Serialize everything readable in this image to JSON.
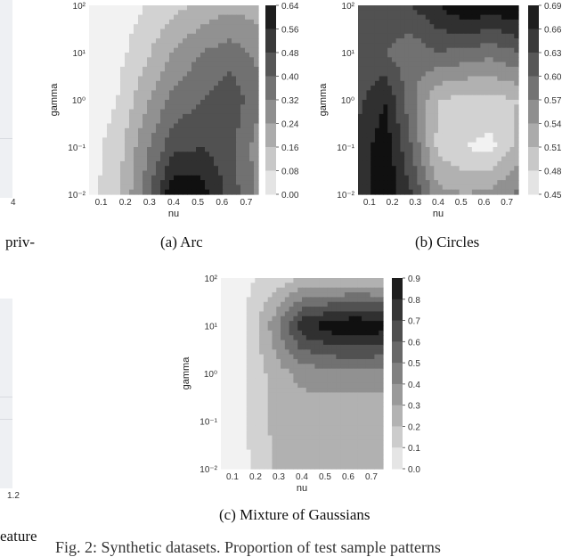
{
  "left_fragments": {
    "tick_top": "4",
    "tick_bottom": "1.2",
    "text_priv": "priv-",
    "text_feature": "eature"
  },
  "bottom_text": "Fig. 2: Synthetic datasets. Proportion of test sample patterns",
  "colors": {
    "dark": "#111111",
    "light": "#f2f2f2"
  },
  "chart_data": [
    {
      "type": "heatmap",
      "caption": "(a) Arc",
      "xlabel": "nu",
      "ylabel": "gamma",
      "x_ticks": [
        "0.1",
        "0.2",
        "0.3",
        "0.4",
        "0.5",
        "0.6",
        "0.7"
      ],
      "y_ticks": [
        "10²",
        "10¹",
        "10⁰",
        "10⁻¹",
        "10⁻²"
      ],
      "colorbar_ticks": [
        "0.64",
        "0.56",
        "0.48",
        "0.40",
        "0.32",
        "0.24",
        "0.16",
        "0.08",
        "0.00"
      ],
      "vmin": 0.0,
      "vmax": 0.64,
      "x": [
        0.1,
        0.2,
        0.3,
        0.4,
        0.5,
        0.6,
        0.7
      ],
      "gamma_log10": [
        -2,
        -1,
        0,
        1,
        2
      ],
      "z": [
        [
          0.05,
          0.14,
          0.35,
          0.64,
          0.6,
          0.45,
          0.3
        ],
        [
          0.04,
          0.12,
          0.3,
          0.45,
          0.48,
          0.42,
          0.28
        ],
        [
          0.03,
          0.08,
          0.22,
          0.35,
          0.4,
          0.46,
          0.34
        ],
        [
          0.02,
          0.05,
          0.14,
          0.25,
          0.32,
          0.36,
          0.3
        ],
        [
          0.01,
          0.03,
          0.08,
          0.13,
          0.18,
          0.22,
          0.2
        ]
      ]
    },
    {
      "type": "heatmap",
      "caption": "(b) Circles",
      "xlabel": "nu",
      "ylabel": "gamma",
      "x_ticks": [
        "0.1",
        "0.2",
        "0.3",
        "0.4",
        "0.5",
        "0.6",
        "0.7"
      ],
      "y_ticks": [
        "10²",
        "10¹",
        "10⁰",
        "10⁻¹",
        "10⁻²"
      ],
      "colorbar_ticks": [
        "0.69",
        "0.66",
        "0.63",
        "0.60",
        "0.57",
        "0.54",
        "0.51",
        "0.48",
        "0.45"
      ],
      "vmin": 0.45,
      "vmax": 0.69,
      "x": [
        0.1,
        0.2,
        0.3,
        0.4,
        0.5,
        0.6,
        0.7
      ],
      "gamma_log10": [
        -2,
        -1,
        0,
        1,
        2
      ],
      "z": [
        [
          0.63,
          0.69,
          0.63,
          0.55,
          0.54,
          0.55,
          0.58
        ],
        [
          0.64,
          0.68,
          0.6,
          0.5,
          0.48,
          0.47,
          0.52
        ],
        [
          0.62,
          0.66,
          0.58,
          0.51,
          0.5,
          0.5,
          0.51
        ],
        [
          0.61,
          0.6,
          0.58,
          0.6,
          0.59,
          0.58,
          0.6
        ],
        [
          0.63,
          0.62,
          0.63,
          0.66,
          0.69,
          0.68,
          0.69
        ]
      ]
    },
    {
      "type": "heatmap",
      "caption": "(c) Mixture of Gaussians",
      "xlabel": "nu",
      "ylabel": "gamma",
      "x_ticks": [
        "0.1",
        "0.2",
        "0.3",
        "0.4",
        "0.5",
        "0.6",
        "0.7"
      ],
      "y_ticks": [
        "10²",
        "10¹",
        "10⁰",
        "10⁻¹",
        "10⁻²"
      ],
      "colorbar_ticks": [
        "0.9",
        "0.8",
        "0.7",
        "0.6",
        "0.5",
        "0.4",
        "0.3",
        "0.2",
        "0.1",
        "0.0"
      ],
      "vmin": 0.0,
      "vmax": 0.9,
      "x": [
        0.1,
        0.2,
        0.3,
        0.4,
        0.5,
        0.6,
        0.7
      ],
      "gamma_log10": [
        -2,
        -1,
        0,
        1,
        2
      ],
      "z": [
        [
          0.05,
          0.1,
          0.25,
          0.25,
          0.25,
          0.25,
          0.25
        ],
        [
          0.05,
          0.12,
          0.25,
          0.25,
          0.25,
          0.25,
          0.25
        ],
        [
          0.04,
          0.12,
          0.28,
          0.38,
          0.4,
          0.4,
          0.4
        ],
        [
          0.03,
          0.12,
          0.4,
          0.75,
          0.85,
          0.9,
          0.85
        ],
        [
          0.03,
          0.1,
          0.15,
          0.22,
          0.22,
          0.22,
          0.22
        ]
      ]
    }
  ]
}
